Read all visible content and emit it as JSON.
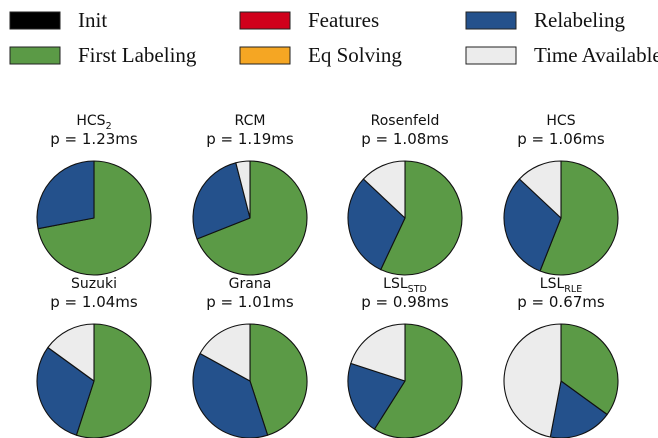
{
  "colors": {
    "Init": "#000000",
    "First Labeling": "#5b9a46",
    "Features": "#d0001b",
    "Eq Solving": "#f5a623",
    "Relabeling": "#24518c",
    "Time Available": "#ececec"
  },
  "legend": [
    {
      "label": "Init"
    },
    {
      "label": "First Labeling"
    },
    {
      "label": "Features"
    },
    {
      "label": "Eq Solving"
    },
    {
      "label": "Relabeling"
    },
    {
      "label": "Time Available"
    }
  ],
  "chart_data": {
    "type": "pie",
    "charts": [
      {
        "title": "HCS",
        "title_sub": "2",
        "time_label": "p = 1.23ms",
        "slices": [
          {
            "label": "First Labeling",
            "value": 72
          },
          {
            "label": "Relabeling",
            "value": 28
          },
          {
            "label": "Time Available",
            "value": 0
          }
        ]
      },
      {
        "title": "RCM",
        "title_sub": "",
        "time_label": "p = 1.19ms",
        "slices": [
          {
            "label": "First Labeling",
            "value": 69
          },
          {
            "label": "Relabeling",
            "value": 27
          },
          {
            "label": "Time Available",
            "value": 4
          }
        ]
      },
      {
        "title": "Rosenfeld",
        "title_sub": "",
        "time_label": "p = 1.08ms",
        "slices": [
          {
            "label": "First Labeling",
            "value": 57
          },
          {
            "label": "Relabeling",
            "value": 30
          },
          {
            "label": "Time Available",
            "value": 13
          }
        ]
      },
      {
        "title": "HCS",
        "title_sub": "",
        "time_label": "p = 1.06ms",
        "slices": [
          {
            "label": "First Labeling",
            "value": 56
          },
          {
            "label": "Relabeling",
            "value": 31
          },
          {
            "label": "Time Available",
            "value": 13
          }
        ]
      },
      {
        "title": "Suzuki",
        "title_sub": "",
        "time_label": "p = 1.04ms",
        "slices": [
          {
            "label": "First Labeling",
            "value": 55
          },
          {
            "label": "Relabeling",
            "value": 30
          },
          {
            "label": "Time Available",
            "value": 15
          }
        ]
      },
      {
        "title": "Grana",
        "title_sub": "",
        "time_label": "p = 1.01ms",
        "slices": [
          {
            "label": "First Labeling",
            "value": 45
          },
          {
            "label": "Relabeling",
            "value": 38
          },
          {
            "label": "Time Available",
            "value": 17
          }
        ]
      },
      {
        "title": "LSL",
        "title_sub": "STD",
        "time_label": "p = 0.98ms",
        "slices": [
          {
            "label": "First Labeling",
            "value": 59
          },
          {
            "label": "Relabeling",
            "value": 21
          },
          {
            "label": "Time Available",
            "value": 20
          }
        ]
      },
      {
        "title": "LSL",
        "title_sub": "RLE",
        "time_label": "p = 0.67ms",
        "slices": [
          {
            "label": "First Labeling",
            "value": 35
          },
          {
            "label": "Relabeling",
            "value": 18
          },
          {
            "label": "Time Available",
            "value": 47
          }
        ]
      }
    ]
  }
}
